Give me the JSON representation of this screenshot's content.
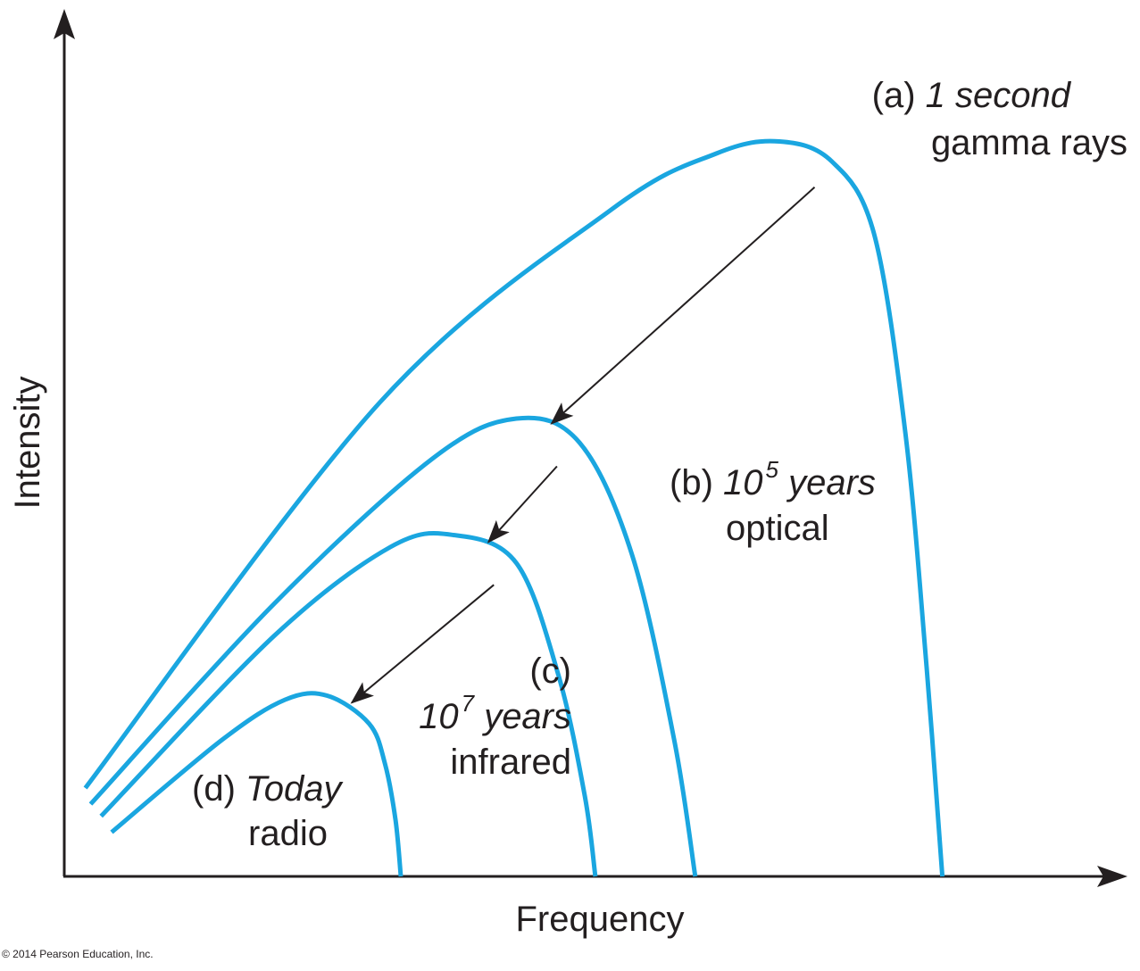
{
  "chart_data": {
    "type": "line",
    "xlabel": "Frequency",
    "ylabel": "Intensity",
    "grid": false,
    "legend": "none",
    "curve_color": "#1aa6e0",
    "arrow_color": "#231f20",
    "series": [
      {
        "id": "a",
        "letter": "(a)",
        "time": "1 second",
        "band": "gamma rays",
        "points": [
          [
            2,
            11
          ],
          [
            30,
            59
          ],
          [
            52,
            83
          ],
          [
            62,
            90
          ],
          [
            68,
            91.5
          ],
          [
            73,
            89
          ],
          [
            77,
            80
          ],
          [
            80,
            55
          ],
          [
            82,
            26
          ],
          [
            83.5,
            0
          ]
        ]
      },
      {
        "id": "b",
        "letter": "(b)",
        "time_base": "10",
        "time_exp": "5",
        "time_unit": "years",
        "band": "optical",
        "points": [
          [
            2.5,
            9
          ],
          [
            20,
            34
          ],
          [
            35,
            52
          ],
          [
            43,
            57
          ],
          [
            49,
            54
          ],
          [
            54,
            40
          ],
          [
            58,
            17
          ],
          [
            60,
            0
          ]
        ]
      },
      {
        "id": "c",
        "letter": "(c)",
        "time_base": "10",
        "time_exp": "7",
        "time_unit": "years",
        "band": "infrared",
        "points": [
          [
            3.5,
            7.5
          ],
          [
            20,
            30
          ],
          [
            31,
            41
          ],
          [
            37,
            42.5
          ],
          [
            43,
            39
          ],
          [
            47,
            25
          ],
          [
            49.5,
            10
          ],
          [
            50.5,
            0
          ]
        ]
      },
      {
        "id": "d",
        "letter": "(d)",
        "time": "Today",
        "band": "radio",
        "points": [
          [
            4.5,
            5.5
          ],
          [
            15,
            17
          ],
          [
            21,
            22
          ],
          [
            25,
            22.5
          ],
          [
            29,
            19
          ],
          [
            30.5,
            14
          ],
          [
            31.5,
            7
          ],
          [
            32,
            0
          ]
        ]
      }
    ],
    "annotations": [
      {
        "from_series": "a",
        "to_series": "b"
      },
      {
        "from_series": "b",
        "to_series": "c"
      },
      {
        "from_series": "c",
        "to_series": "d"
      }
    ]
  },
  "copyright": "© 2014 Pearson Education, Inc."
}
